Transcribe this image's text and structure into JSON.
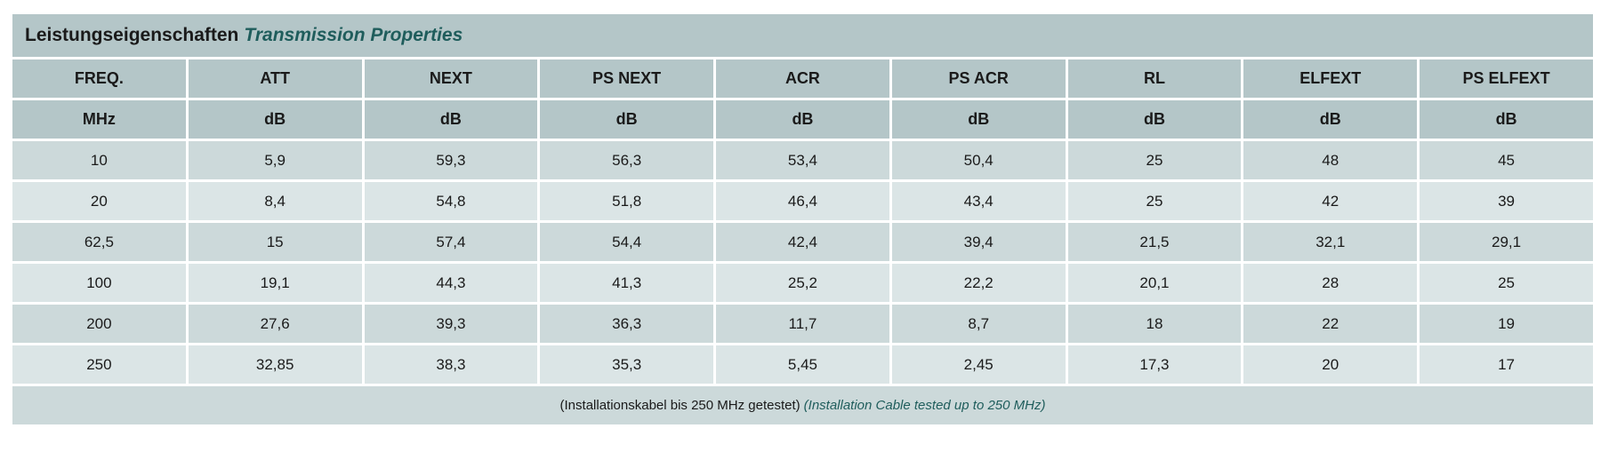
{
  "title": {
    "de": "Leistungseigenschaften",
    "en": "Transmission Properties"
  },
  "table": {
    "header": [
      "FREQ.",
      "ATT",
      "NEXT",
      "PS NEXT",
      "ACR",
      "PS ACR",
      "RL",
      "ELFEXT",
      "PS ELFEXT"
    ],
    "units": [
      "MHz",
      "dB",
      "dB",
      "dB",
      "dB",
      "dB",
      "dB",
      "dB",
      "dB"
    ],
    "rows": [
      [
        "10",
        "5,9",
        "59,3",
        "56,3",
        "53,4",
        "50,4",
        "25",
        "48",
        "45"
      ],
      [
        "20",
        "8,4",
        "54,8",
        "51,8",
        "46,4",
        "43,4",
        "25",
        "42",
        "39"
      ],
      [
        "62,5",
        "15",
        "57,4",
        "54,4",
        "42,4",
        "39,4",
        "21,5",
        "32,1",
        "29,1"
      ],
      [
        "100",
        "19,1",
        "44,3",
        "41,3",
        "25,2",
        "22,2",
        "20,1",
        "28",
        "25"
      ],
      [
        "200",
        "27,6",
        "39,3",
        "36,3",
        "11,7",
        "8,7",
        "18",
        "22",
        "19"
      ],
      [
        "250",
        "32,85",
        "38,3",
        "35,3",
        "5,45",
        "2,45",
        "17,3",
        "20",
        "17"
      ]
    ]
  },
  "footer": {
    "de": "(Installationskabel bis 250 MHz getestet)",
    "en": "(Installation Cable tested up to 250 MHz)"
  }
}
